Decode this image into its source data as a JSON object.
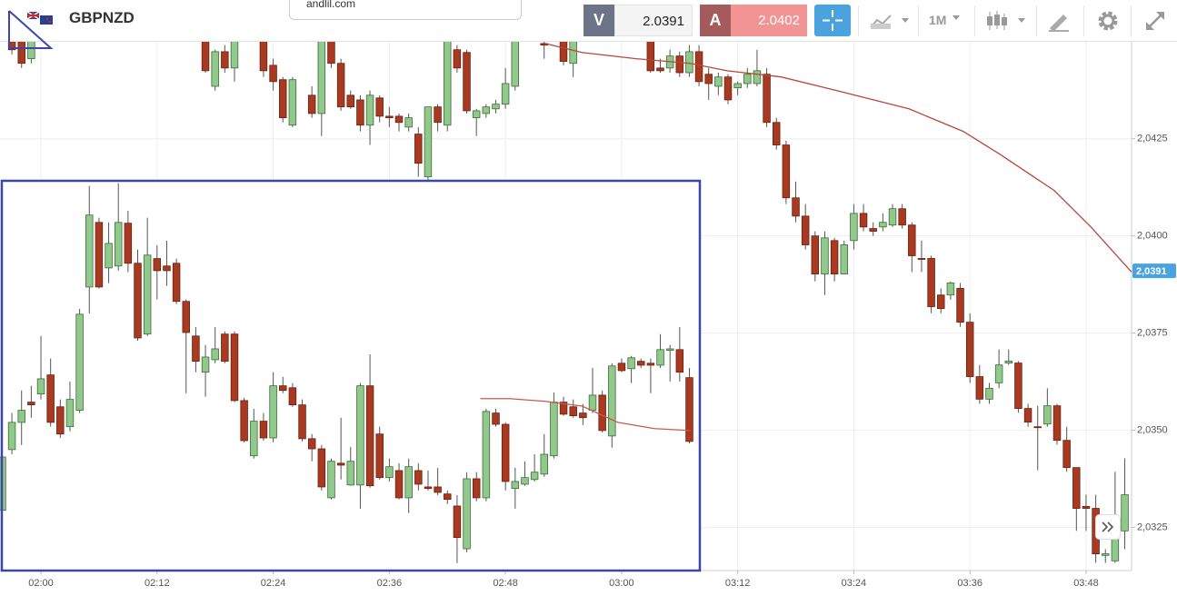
{
  "toolbar": {
    "symbol": "GBPNZD",
    "popup_text": "andlil.com",
    "sell": {
      "label": "V",
      "price": "2.0391"
    },
    "buy": {
      "label": "A",
      "price": "2.0402"
    },
    "interval": "1M"
  },
  "chart_data": [
    {
      "type": "candlestick",
      "x": [
        117,
        118,
        119,
        137,
        138,
        139,
        140,
        143,
        144,
        145,
        146,
        148,
        149,
        150,
        151,
        152,
        153,
        154,
        155,
        156,
        157,
        158,
        159,
        160,
        161,
        162,
        163,
        164,
        165,
        166,
        167,
        168,
        169,
        172,
        174,
        175,
        183,
        184,
        185,
        186,
        187,
        188,
        189,
        190,
        191,
        192,
        193,
        194,
        195,
        196,
        197,
        198,
        199,
        200,
        201,
        202,
        203,
        204,
        205,
        206,
        207,
        208,
        209,
        210,
        211,
        212,
        213,
        214,
        215,
        216,
        217,
        218,
        219,
        220,
        221,
        222,
        223,
        224,
        225,
        226,
        227,
        228,
        229,
        230,
        231,
        232
      ],
      "open": [
        2.04502,
        2.04502,
        2.04456,
        2.04502,
        2.04385,
        2.04474,
        2.04432,
        2.04502,
        2.04439,
        2.04402,
        2.04285,
        2.04362,
        2.04315,
        2.04502,
        2.04444,
        2.04362,
        2.0435,
        2.04285,
        2.04355,
        2.04308,
        2.04308,
        2.0428,
        2.04262,
        2.04152,
        2.04332,
        2.04285,
        2.04479,
        2.04472,
        2.04304,
        2.04315,
        2.04327,
        2.04339,
        2.04385,
        2.04495,
        2.04502,
        2.04444,
        2.04502,
        2.04432,
        2.04432,
        2.04463,
        2.0442,
        2.04474,
        2.04416,
        2.04385,
        2.04409,
        2.04381,
        2.04392,
        2.04392,
        2.04416,
        2.04292,
        2.04234,
        2.04098,
        2.04051,
        2.04,
        2.03902,
        2.03988,
        2.03902,
        2.03988,
        2.04058,
        2.04019,
        2.04023,
        2.04028,
        2.0407,
        2.04028,
        2.03942,
        2.03942,
        2.03848,
        2.03848,
        2.03865,
        2.03778,
        2.03638,
        2.0358,
        2.03622,
        2.03673,
        2.03673,
        2.03556,
        2.03509,
        2.03516,
        2.03563,
        2.03474,
        2.03404,
        2.03304,
        2.03299,
        2.03178,
        2.03164,
        2.03241
      ],
      "high": [
        2.04514,
        2.04514,
        2.04514,
        2.04514,
        2.04479,
        2.04491,
        2.04514,
        2.04514,
        2.04456,
        2.04409,
        2.04409,
        2.04385,
        2.04514,
        2.04514,
        2.04456,
        2.04374,
        2.04362,
        2.04374,
        2.04362,
        2.04332,
        2.04315,
        2.04315,
        2.0428,
        2.04332,
        2.04339,
        2.04514,
        2.04491,
        2.04479,
        2.04327,
        2.04339,
        2.0435,
        2.04432,
        2.04514,
        2.04502,
        2.04514,
        2.04514,
        2.04514,
        2.04456,
        2.04479,
        2.04474,
        2.04491,
        2.04491,
        2.04432,
        2.0442,
        2.04416,
        2.04397,
        2.04432,
        2.04479,
        2.04432,
        2.04304,
        2.04245,
        2.0414,
        2.04082,
        2.04012,
        2.04012,
        2.03995,
        2.03988,
        2.04082,
        2.04082,
        2.04035,
        2.04058,
        2.04082,
        2.04082,
        2.04035,
        2.03988,
        2.03949,
        2.03865,
        2.03883,
        2.03879,
        2.03801,
        2.03668,
        2.03622,
        2.03708,
        2.03708,
        2.03678,
        2.03568,
        2.03563,
        2.03608,
        2.03568,
        2.03509,
        2.03404,
        2.03334,
        2.03334,
        2.03194,
        2.03393,
        2.03428
      ],
      "low": [
        2.04467,
        2.04432,
        2.04444,
        2.0442,
        2.04374,
        2.0442,
        2.04397,
        2.04409,
        2.04374,
        2.04292,
        2.0428,
        2.04304,
        2.04257,
        2.04432,
        2.04322,
        2.04327,
        2.04269,
        2.04234,
        2.04292,
        2.0428,
        2.04269,
        2.04269,
        2.04152,
        2.0414,
        2.04269,
        2.04269,
        2.0442,
        2.04315,
        2.04257,
        2.04304,
        2.04315,
        2.04327,
        2.04374,
        2.04456,
        2.04439,
        2.04409,
        2.0442,
        2.0442,
        2.0442,
        2.04409,
        2.04409,
        2.04385,
        2.0435,
        2.04362,
        2.04339,
        2.04362,
        2.04381,
        2.04385,
        2.0428,
        2.04222,
        2.04082,
        2.04035,
        2.03965,
        2.03883,
        2.03848,
        2.03883,
        2.03902,
        2.03965,
        2.04012,
        2.04,
        2.04012,
        2.04023,
        2.04019,
        2.03907,
        2.03907,
        2.03801,
        2.03801,
        2.03836,
        2.03766,
        2.03622,
        2.03568,
        2.03568,
        2.03608,
        2.03668,
        2.03545,
        2.03509,
        2.03397,
        2.03509,
        2.03463,
        2.03393,
        2.03241,
        2.03241,
        2.03159,
        2.03159,
        2.03159,
        2.03194
      ],
      "close": [
        2.04479,
        2.04444,
        2.04502,
        2.04425,
        2.04474,
        2.04432,
        2.04502,
        2.04425,
        2.04397,
        2.04304,
        2.04402,
        2.04315,
        2.04502,
        2.04444,
        2.04332,
        2.04332,
        2.04285,
        2.04362,
        2.04308,
        2.04304,
        2.04292,
        2.04304,
        2.04187,
        2.04332,
        2.04292,
        2.04502,
        2.04432,
        2.04322,
        2.04322,
        2.04332,
        2.04339,
        2.04392,
        2.04502,
        2.04491,
        2.04449,
        2.04502,
        2.04425,
        2.04425,
        2.04463,
        2.0442,
        2.04474,
        2.04397,
        2.04392,
        2.04409,
        2.0435,
        2.04392,
        2.04416,
        2.04425,
        2.04292,
        2.04234,
        2.04098,
        2.04051,
        2.03977,
        2.03902,
        2.03995,
        2.03902,
        2.03977,
        2.04058,
        2.04023,
        2.04012,
        2.04035,
        2.0407,
        2.04028,
        2.03949,
        2.03942,
        2.03818,
        2.03813,
        2.03879,
        2.03778,
        2.03638,
        2.0358,
        2.03608,
        2.03668,
        2.03678,
        2.03556,
        2.03521,
        2.03509,
        2.03563,
        2.03474,
        2.03404,
        2.03299,
        2.03299,
        2.03182,
        2.03182,
        2.03229,
        2.03334
      ],
      "up_color": "#90c98b",
      "down_color": "#a83a22",
      "ma": {
        "color": "#b8473a",
        "x": [
          172.1,
          175.9,
          181.5,
          187.1,
          190.9,
          196.5,
          202.2,
          209.7,
          215.3,
          219.1,
          224.7,
          228.5,
          232.7
        ],
        "values": [
          2.04495,
          2.04472,
          2.04456,
          2.04444,
          2.04425,
          2.04409,
          2.04374,
          2.04327,
          2.04269,
          2.0421,
          2.04117,
          2.04023,
          2.03907
        ]
      },
      "xlim": [
        115.77,
        232.7
      ],
      "ylim": [
        2.03139,
        2.04607
      ],
      "xticks": [
        {
          "value": 120,
          "label": "02:00"
        },
        {
          "value": 132,
          "label": "02:12"
        },
        {
          "value": 144,
          "label": "02:24"
        },
        {
          "value": 156,
          "label": "02:36"
        },
        {
          "value": 168,
          "label": "02:48"
        },
        {
          "value": 180,
          "label": "03:00"
        },
        {
          "value": 192,
          "label": "03:12"
        },
        {
          "value": 204,
          "label": "03:24"
        },
        {
          "value": 216,
          "label": "03:36"
        },
        {
          "value": 228,
          "label": "03:48"
        }
      ],
      "yticks": [
        {
          "value": 2.0325,
          "label": "2,0325"
        },
        {
          "value": 2.035,
          "label": "2,0350"
        },
        {
          "value": 2.0375,
          "label": "2,0375"
        },
        {
          "value": 2.04,
          "label": "2,0400"
        },
        {
          "value": 2.0425,
          "label": "2,0425"
        }
      ],
      "grid": true,
      "last_price": {
        "value": 2.0391,
        "label": "2,0391",
        "color": "#4aa3df"
      }
    },
    {
      "type": "candlestick",
      "x": [
        116,
        117,
        118,
        119,
        120,
        121,
        122,
        123,
        124,
        125,
        126,
        127,
        128,
        129,
        130,
        131,
        132,
        133,
        134,
        135,
        136,
        137,
        138,
        139,
        140,
        141,
        142,
        143,
        144,
        145,
        146,
        147,
        148,
        149,
        150,
        151,
        152,
        153,
        154,
        155,
        156,
        157,
        158,
        159,
        160,
        161,
        162,
        163,
        164,
        165,
        166,
        167,
        168,
        169,
        170,
        171,
        172,
        173,
        174,
        175,
        176,
        177,
        178,
        179,
        180,
        181,
        182,
        183,
        184,
        185,
        186,
        187
      ],
      "open": [
        2.03295,
        2.03451,
        2.03521,
        2.03573,
        2.03594,
        2.03643,
        2.03561,
        2.0351,
        2.03552,
        2.03869,
        2.04035,
        2.03918,
        2.03923,
        2.04033,
        2.0393,
        2.03748,
        2.03942,
        2.03923,
        2.0393,
        2.03832,
        2.03743,
        2.0365,
        2.03682,
        2.03748,
        2.03748,
        2.03577,
        2.03435,
        2.03524,
        2.03481,
        2.03615,
        2.0361,
        2.03566,
        2.03479,
        2.03453,
        2.03327,
        2.03416,
        2.0336,
        2.0336,
        2.03615,
        2.03491,
        2.03379,
        2.03397,
        2.03327,
        2.03397,
        2.03355,
        2.03355,
        2.03337,
        2.03306,
        2.03196,
        2.03376,
        2.03327,
        2.03545,
        2.03516,
        2.03351,
        2.03362,
        2.03374,
        2.03388,
        2.03435,
        2.03573,
        2.03561,
        2.03545,
        2.03552,
        2.03591,
        2.03486,
        2.03673,
        2.03659,
        2.03678,
        2.03673,
        2.03668,
        2.03706,
        2.03708,
        2.03636
      ],
      "high": [
        2.03439,
        2.03545,
        2.03603,
        2.03615,
        2.03743,
        2.03685,
        2.0358,
        2.03626,
        2.03813,
        2.04129,
        2.04047,
        2.04035,
        2.04136,
        2.04065,
        2.03965,
        2.04047,
        2.03977,
        2.03988,
        2.03942,
        2.03837,
        2.03766,
        2.0372,
        2.03766,
        2.03755,
        2.03755,
        2.03584,
        2.03556,
        2.03545,
        2.0365,
        2.03638,
        2.03622,
        2.0358,
        2.03491,
        2.03463,
        2.03428,
        2.03533,
        2.03458,
        2.03622,
        2.03696,
        2.0351,
        2.03428,
        2.03416,
        2.03428,
        2.03416,
        2.03397,
        2.03404,
        2.03346,
        2.03334,
        2.03393,
        2.03393,
        2.03556,
        2.03556,
        2.03521,
        2.03404,
        2.03421,
        2.03439,
        2.03491,
        2.03598,
        2.03587,
        2.0358,
        2.03568,
        2.03661,
        2.03603,
        2.03673,
        2.03685,
        2.03692,
        2.03685,
        2.03685,
        2.03748,
        2.0372,
        2.03766,
        2.03661
      ],
      "low": [
        2.03288,
        2.03439,
        2.03463,
        2.03533,
        2.0358,
        2.0351,
        2.03481,
        2.03498,
        2.03545,
        2.03801,
        2.03865,
        2.03879,
        2.03911,
        2.03907,
        2.03731,
        2.03743,
        2.03837,
        2.03872,
        2.03825,
        2.03596,
        2.0365,
        2.03587,
        2.03673,
        2.03673,
        2.03573,
        2.0347,
        2.03428,
        2.03474,
        2.0347,
        2.03596,
        2.03561,
        2.03472,
        2.03421,
        2.03346,
        2.03323,
        2.03374,
        2.03358,
        2.03299,
        2.03353,
        2.03374,
        2.03369,
        2.03323,
        2.03288,
        2.03346,
        2.03346,
        2.03334,
        2.03311,
        2.03159,
        2.03187,
        2.03318,
        2.03318,
        2.0351,
        2.03346,
        2.03299,
        2.03358,
        2.03369,
        2.03381,
        2.03428,
        2.03538,
        2.03533,
        2.03514,
        2.03545,
        2.03495,
        2.03456,
        2.0365,
        2.03622,
        2.03661,
        2.03596,
        2.03661,
        2.03626,
        2.03626,
        2.03467
      ],
      "close": [
        2.03432,
        2.03521,
        2.03552,
        2.03566,
        2.03633,
        2.03521,
        2.03491,
        2.0358,
        2.03799,
        2.04054,
        2.03869,
        2.03981,
        2.04035,
        2.0393,
        2.03738,
        2.03951,
        2.03911,
        2.03911,
        2.03832,
        2.03752,
        2.03678,
        2.03689,
        2.0371,
        2.03678,
        2.03577,
        2.03474,
        2.03524,
        2.03481,
        2.03615,
        2.03603,
        2.03566,
        2.03479,
        2.03453,
        2.03355,
        2.03421,
        2.03411,
        2.03421,
        2.03615,
        2.03358,
        2.03379,
        2.03407,
        2.03327,
        2.03407,
        2.03362,
        2.03351,
        2.03341,
        2.03323,
        2.03225,
        2.03376,
        2.03327,
        2.03549,
        2.03516,
        2.03369,
        2.03369,
        2.03379,
        2.03393,
        2.03439,
        2.03573,
        2.03542,
        2.03538,
        2.03533,
        2.03591,
        2.035,
        2.03666,
        2.03654,
        2.03687,
        2.03668,
        2.03668,
        2.03708,
        2.0371,
        2.0365,
        2.03472
      ],
      "up_color": "#90c98b",
      "down_color": "#a83a22",
      "ma": {
        "color": "#c9594d",
        "x": [
          165.4,
          168.4,
          172.1,
          175.9,
          179.6,
          183.4,
          187.1
        ],
        "values": [
          2.03582,
          2.03582,
          2.03575,
          2.03563,
          2.03521,
          2.03505,
          2.035
        ]
      },
      "xlim": [
        115.96,
        188.08
      ],
      "ylim": [
        2.0314,
        2.04142
      ],
      "frame_color": "#3b47a8"
    }
  ]
}
